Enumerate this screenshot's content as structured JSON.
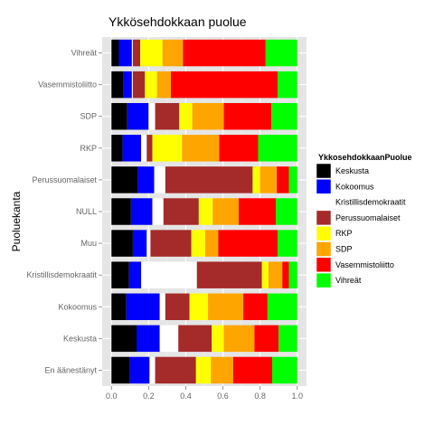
{
  "chart_data": {
    "type": "bar",
    "orientation": "horizontal",
    "stacked": true,
    "title": "Ykkösehdokkaan puolue",
    "xlabel": "",
    "ylabel": "Puoluekanta",
    "xlim": [
      0,
      1
    ],
    "xticks": [
      "0.0",
      "0.2",
      "0.4",
      "0.6",
      "0.8",
      "1.0"
    ],
    "grid": true,
    "legend_position": "right",
    "legend_title": "YkkosehdokkaanPuolue",
    "categories": [
      "Vihreät",
      "Vasemmistoliitto",
      "SDP",
      "RKP",
      "Perussuomalaiset",
      "NULL",
      "Muu",
      "Kristillisdemokraatit",
      "Kokoomus",
      "Keskusta",
      "En äänestänyt"
    ],
    "series": [
      {
        "name": "Keskusta",
        "color": "#000000",
        "values": [
          0.04,
          0.065,
          0.085,
          0.06,
          0.14,
          0.105,
          0.115,
          0.095,
          0.08,
          0.135,
          0.1
        ]
      },
      {
        "name": "Kokoomus",
        "color": "#0000FF",
        "values": [
          0.07,
          0.045,
          0.115,
          0.1,
          0.09,
          0.115,
          0.075,
          0.065,
          0.18,
          0.125,
          0.105
        ]
      },
      {
        "name": "Kristillisdemokraatit",
        "color": "#FFFFFF",
        "values": [
          0.005,
          0.005,
          0.035,
          0.03,
          0.06,
          0.06,
          0.02,
          0.3,
          0.03,
          0.1,
          0.03
        ]
      },
      {
        "name": "Perussuomalaiset",
        "color": "#A52A2A",
        "values": [
          0.04,
          0.065,
          0.13,
          0.03,
          0.47,
          0.19,
          0.22,
          0.35,
          0.13,
          0.18,
          0.22
        ]
      },
      {
        "name": "RKP",
        "color": "#FFFF00",
        "values": [
          0.12,
          0.065,
          0.07,
          0.16,
          0.04,
          0.075,
          0.075,
          0.035,
          0.1,
          0.065,
          0.08
        ]
      },
      {
        "name": "SDP",
        "color": "#FFA500",
        "values": [
          0.11,
          0.075,
          0.17,
          0.2,
          0.09,
          0.14,
          0.07,
          0.075,
          0.19,
          0.165,
          0.12
        ]
      },
      {
        "name": "Vasemmistoliitto",
        "color": "#FF0000",
        "values": [
          0.445,
          0.575,
          0.255,
          0.21,
          0.065,
          0.2,
          0.32,
          0.035,
          0.13,
          0.13,
          0.21
        ]
      },
      {
        "name": "Vihreät",
        "color": "#00FF00",
        "values": [
          0.17,
          0.105,
          0.14,
          0.21,
          0.045,
          0.115,
          0.105,
          0.045,
          0.16,
          0.1,
          0.135
        ]
      }
    ]
  }
}
